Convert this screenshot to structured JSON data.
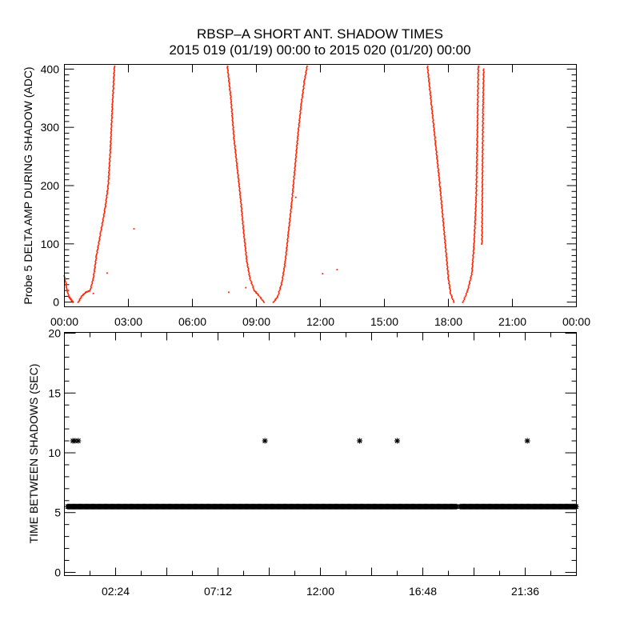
{
  "title": "RBSP–A SHORT ANT. SHADOW TIMES",
  "subtitle": "2015 019 (01/19) 00:00 to 2015 020 (01/20) 00:00",
  "colors": {
    "points": "#ff2200",
    "markers": "#000000",
    "axes": "#000000"
  },
  "chart_data": [
    {
      "type": "scatter",
      "ylabel": "Probe 5 DELTA AMP DURING SHADOW (ADC)",
      "xlabel": "",
      "xlim_hours": [
        0,
        24
      ],
      "ylim": [
        -8,
        408
      ],
      "x_tick_labels": [
        "00:00",
        "03:00",
        "06:00",
        "09:00",
        "12:00",
        "15:00",
        "18:00",
        "21:00",
        "00:00"
      ],
      "y_tick_labels": [
        "0",
        "100",
        "200",
        "300",
        "400"
      ],
      "grid": false,
      "marker": "dot",
      "branches": [
        [
          [
            0,
            45
          ],
          [
            0.1,
            25
          ],
          [
            0.2,
            10
          ],
          [
            0.3,
            5
          ],
          [
            0.4,
            0
          ]
        ],
        [
          [
            0.65,
            0
          ],
          [
            0.8,
            10
          ],
          [
            1.0,
            17
          ],
          [
            1.2,
            20
          ],
          [
            1.35,
            40
          ],
          [
            1.5,
            80
          ],
          [
            1.7,
            120
          ],
          [
            1.9,
            160
          ],
          [
            2.05,
            200
          ],
          [
            2.15,
            260
          ],
          [
            2.25,
            340
          ],
          [
            2.35,
            410
          ]
        ],
        [
          [
            7.62,
            410
          ],
          [
            7.8,
            350
          ],
          [
            7.95,
            280
          ],
          [
            8.1,
            230
          ],
          [
            8.25,
            180
          ],
          [
            8.4,
            120
          ],
          [
            8.55,
            70
          ],
          [
            8.7,
            40
          ],
          [
            8.9,
            20
          ],
          [
            9.1,
            12
          ],
          [
            9.35,
            0
          ]
        ],
        [
          [
            9.8,
            0
          ],
          [
            10.0,
            10
          ],
          [
            10.2,
            35
          ],
          [
            10.35,
            70
          ],
          [
            10.5,
            120
          ],
          [
            10.65,
            170
          ],
          [
            10.8,
            230
          ],
          [
            10.95,
            290
          ],
          [
            11.1,
            340
          ],
          [
            11.25,
            380
          ],
          [
            11.4,
            410
          ]
        ],
        [
          [
            17.0,
            410
          ],
          [
            17.2,
            340
          ],
          [
            17.4,
            270
          ],
          [
            17.6,
            200
          ],
          [
            17.75,
            140
          ],
          [
            17.9,
            80
          ],
          [
            18.0,
            40
          ],
          [
            18.1,
            15
          ],
          [
            18.25,
            0
          ]
        ],
        [
          [
            18.68,
            0
          ],
          [
            18.9,
            20
          ],
          [
            19.1,
            50
          ],
          [
            19.2,
            100
          ],
          [
            19.3,
            180
          ],
          [
            19.35,
            280
          ],
          [
            19.4,
            410
          ]
        ],
        [
          [
            19.57,
            100
          ],
          [
            19.6,
            250
          ],
          [
            19.62,
            330
          ],
          [
            19.65,
            400
          ]
        ]
      ],
      "isolated_points": [
        [
          3.26,
          126
        ],
        [
          2.0,
          50
        ],
        [
          1.35,
          15
        ],
        [
          10.84,
          180
        ],
        [
          7.7,
          17
        ],
        [
          8.5,
          25
        ],
        [
          12.1,
          49
        ],
        [
          12.78,
          56
        ]
      ]
    },
    {
      "type": "scatter",
      "ylabel": "TIME BETWEEN SHADOWS (SEC)",
      "xlabel": "",
      "xlim_hours": [
        0,
        24
      ],
      "ylim": [
        -0.27,
        20.07
      ],
      "x_tick_labels": [
        "02:24",
        "07:12",
        "12:00",
        "16:48",
        "21:36"
      ],
      "y_tick_labels": [
        "0",
        "5",
        "10",
        "15",
        "20"
      ],
      "grid": false,
      "marker": "asterisk",
      "baseline_value": 5.5,
      "baseline_segments_hours": [
        [
          0.15,
          18.4
        ],
        [
          18.55,
          24
        ]
      ],
      "points": [
        [
          0.4,
          11
        ],
        [
          0.5,
          11
        ],
        [
          0.65,
          11
        ],
        [
          9.4,
          11
        ],
        [
          13.84,
          11
        ],
        [
          15.6,
          11
        ],
        [
          21.7,
          11
        ]
      ]
    }
  ]
}
